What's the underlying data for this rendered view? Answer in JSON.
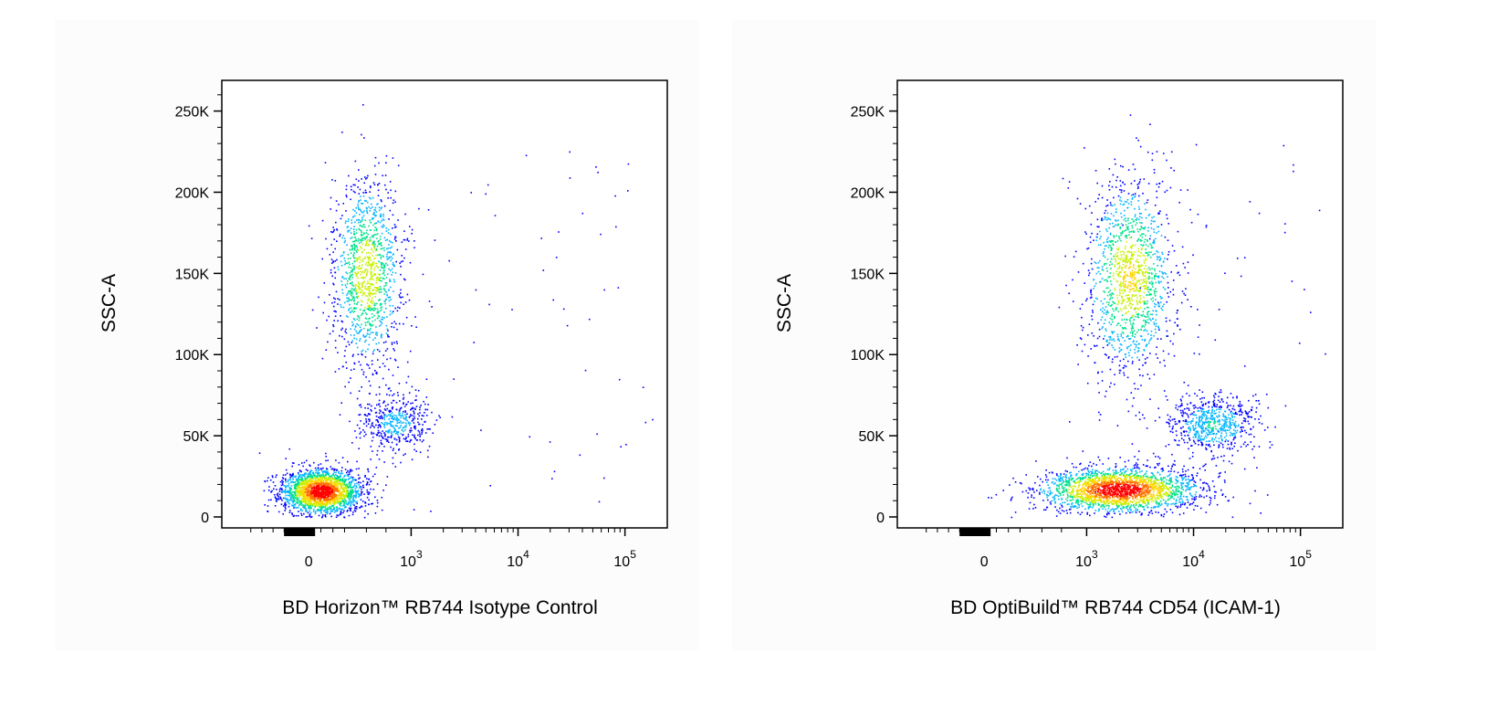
{
  "chart_data": [
    {
      "type": "scatter",
      "style": "pseudocolor density dot plot",
      "title": "",
      "xlabel": "BD Horizon™ RB744 Isotype Control",
      "ylabel": "SSC-A",
      "x_scale": "biexponential",
      "x_ticklabels": [
        "0",
        "10^3",
        "10^4",
        "10^5"
      ],
      "y_ticklabels": [
        "0",
        "50K",
        "100K",
        "150K",
        "200K",
        "250K"
      ],
      "ylim": [
        0,
        262144
      ],
      "density_colors": [
        "#0000ff",
        "#00b4ff",
        "#00e08c",
        "#c8f000",
        "#ffd400",
        "#ff7000",
        "#ff0000"
      ],
      "populations": [
        {
          "label": "",
          "x_median": 100,
          "y_median": 16000,
          "relative_density": 1.0
        },
        {
          "label": "",
          "x_median": 500,
          "y_median": 150000,
          "relative_density": 0.55
        },
        {
          "label": "",
          "x_median": 800,
          "y_median": 58000,
          "relative_density": 0.2
        }
      ]
    },
    {
      "type": "scatter",
      "style": "pseudocolor density dot plot",
      "title": "",
      "xlabel": "BD OptiBuild™ RB744 CD54 (ICAM-1)",
      "ylabel": "SSC-A",
      "x_scale": "biexponential",
      "x_ticklabels": [
        "0",
        "10^3",
        "10^4",
        "10^5"
      ],
      "y_ticklabels": [
        "0",
        "50K",
        "100K",
        "150K",
        "200K",
        "250K"
      ],
      "ylim": [
        0,
        262144
      ],
      "density_colors": [
        "#0000ff",
        "#00b4ff",
        "#00e08c",
        "#c8f000",
        "#ffd400",
        "#ff7000",
        "#ff0000"
      ],
      "populations": [
        {
          "label": "",
          "x_median": 2000,
          "y_median": 17000,
          "relative_density": 1.0
        },
        {
          "label": "",
          "x_median": 2500,
          "y_median": 148000,
          "relative_density": 0.6
        },
        {
          "label": "",
          "x_median": 15000,
          "y_median": 57000,
          "relative_density": 0.3
        }
      ]
    }
  ]
}
